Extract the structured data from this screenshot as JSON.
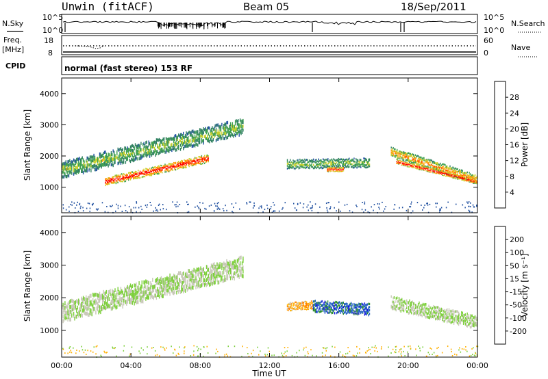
{
  "header": {
    "station": "Unwin (fitACF)",
    "beam": "Beam 05",
    "date": "18/Sep/2011"
  },
  "noise_panel": {
    "left_label": "N.Sky",
    "right_label": "N.Search",
    "ticks": [
      "10^5",
      "10^0"
    ]
  },
  "freq_panel": {
    "left_label_1": "Freq.",
    "left_label_2": "[MHz]",
    "left_ticks": [
      "18",
      "8"
    ],
    "right_label": "Nave",
    "right_ticks": [
      "60",
      "0"
    ]
  },
  "cpid_panel": {
    "label": "CPID",
    "text": "normal (fast stereo) 153 RF"
  },
  "chart_data": [
    {
      "type": "heatmap",
      "title": "",
      "xlabel": "",
      "ylabel": "Slant Range [km]",
      "xlim": [
        0,
        24
      ],
      "ylim": [
        180,
        4500
      ],
      "x_ticks": [
        "00:00",
        "04:00",
        "08:00",
        "12:00",
        "16:00",
        "20:00",
        "00:00"
      ],
      "y_ticks": [
        "1000",
        "2000",
        "3000",
        "4000"
      ],
      "colorbar": {
        "label": "Power [dB]",
        "ticks": [
          "28",
          "24",
          "20",
          "16",
          "12",
          "8",
          "4"
        ],
        "range": [
          0,
          30
        ],
        "colors": [
          "#1020ff",
          "#2050a0",
          "#2f8060",
          "#3fa050",
          "#c8d028",
          "#ff9a00",
          "#ff5500",
          "#ff0000"
        ]
      },
      "scatter_features": [
        {
          "x_start": 0.0,
          "x_end": 10.5,
          "range_start_km": 1500,
          "range_end_km": 2900,
          "width_km": 500,
          "level_db": 14
        },
        {
          "x_start": 2.5,
          "x_end": 8.5,
          "range_start_km": 1150,
          "range_end_km": 1900,
          "width_km": 260,
          "level_db": 26
        },
        {
          "x_start": 13.0,
          "x_end": 17.8,
          "range_start_km": 1700,
          "range_end_km": 1750,
          "width_km": 300,
          "level_db": 14
        },
        {
          "x_start": 15.3,
          "x_end": 16.3,
          "range_start_km": 1550,
          "range_end_km": 1550,
          "width_km": 150,
          "level_db": 26
        },
        {
          "x_start": 19.0,
          "x_end": 24.0,
          "range_start_km": 2100,
          "range_end_km": 1200,
          "width_km": 300,
          "level_db": 20
        },
        {
          "x_start": 19.3,
          "x_end": 24.0,
          "range_start_km": 1800,
          "range_end_km": 1150,
          "width_km": 150,
          "level_db": 26
        }
      ]
    },
    {
      "type": "heatmap",
      "title": "",
      "xlabel": "Time UT",
      "ylabel": "Slant Range [km]",
      "xlim": [
        0,
        24
      ],
      "ylim": [
        180,
        4500
      ],
      "x_ticks": [
        "00:00",
        "04:00",
        "08:00",
        "12:00",
        "16:00",
        "20:00",
        "00:00"
      ],
      "y_ticks": [
        "1000",
        "2000",
        "3000",
        "4000"
      ],
      "colorbar": {
        "label": "Velocity [m s⁻¹]",
        "ticks": [
          "200",
          "100",
          "50",
          "15",
          "-15",
          "-50",
          "-100",
          "-200"
        ],
        "range": [
          -250,
          250
        ],
        "colors": [
          "#ff0000",
          "#ff8000",
          "#ffb000",
          "#c8c8b8",
          "#7ccf3a",
          "#2f8f2f",
          "#2060c0",
          "#1010e0"
        ]
      },
      "scatter_features": [
        {
          "x_start": 0.0,
          "x_end": 10.5,
          "range_start_km": 1500,
          "range_end_km": 2900,
          "width_km": 600,
          "velocity": 0,
          "note": "ground scatter grey"
        },
        {
          "x_start": 13.0,
          "x_end": 14.5,
          "range_start_km": 1700,
          "range_end_km": 1750,
          "width_km": 250,
          "velocity": -100
        },
        {
          "x_start": 14.5,
          "x_end": 17.8,
          "range_start_km": 1700,
          "range_end_km": 1600,
          "width_km": 350,
          "velocity": 150
        },
        {
          "x_start": 19.0,
          "x_end": 24.0,
          "range_start_km": 1800,
          "range_end_km": 1200,
          "width_km": 400,
          "velocity": 0
        }
      ]
    }
  ]
}
